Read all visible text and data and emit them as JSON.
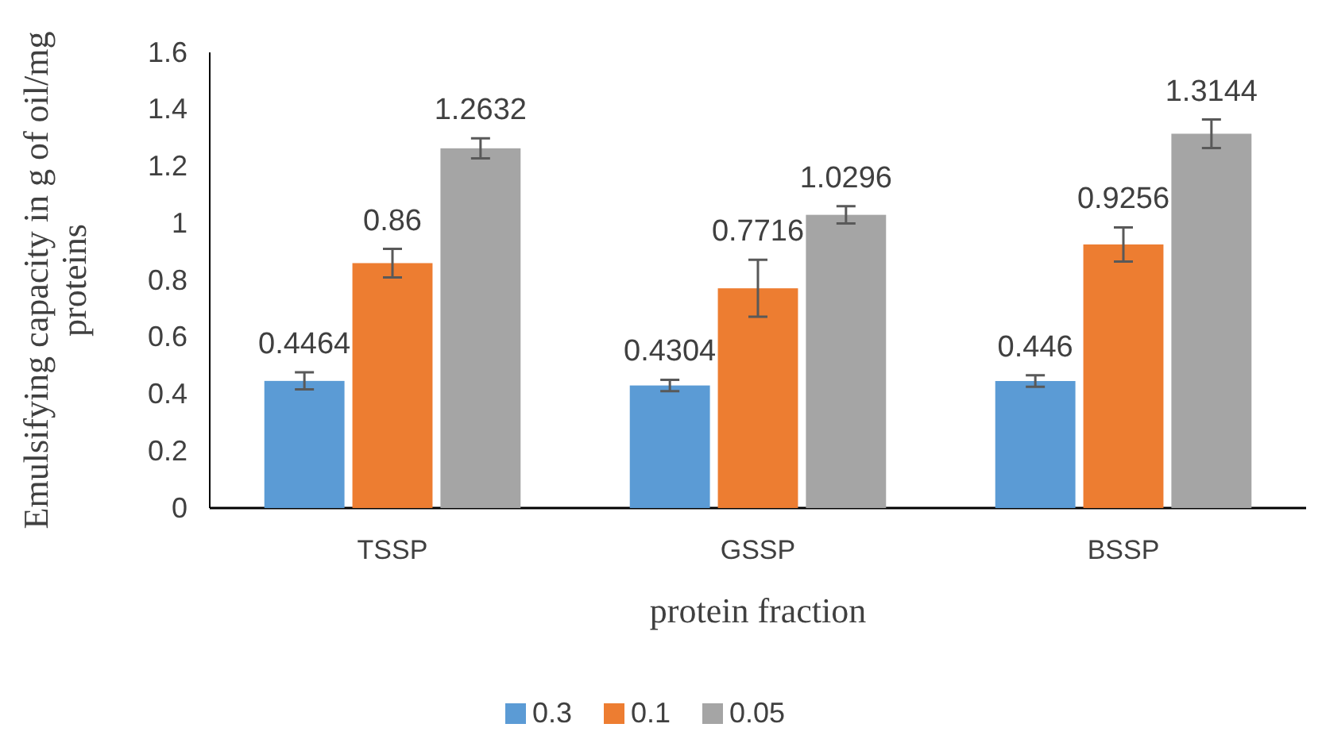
{
  "chart_data": {
    "type": "bar",
    "xlabel": "protein fraction",
    "ylabel": "Emulsifying capacity in g of oil/mg proteins",
    "categories": [
      "TSSP",
      "GSSP",
      "BSSP"
    ],
    "series": [
      {
        "name": "0.3",
        "color": "#5b9bd5",
        "values": [
          0.4464,
          0.4304,
          0.446
        ],
        "errors": [
          0.03,
          0.02,
          0.02
        ]
      },
      {
        "name": "0.1",
        "color": "#ed7d31",
        "values": [
          0.86,
          0.7716,
          0.9256
        ],
        "errors": [
          0.05,
          0.1,
          0.06
        ]
      },
      {
        "name": "0.05",
        "color": "#a5a5a5",
        "values": [
          1.2632,
          1.0296,
          1.3144
        ],
        "errors": [
          0.035,
          0.03,
          0.05
        ]
      }
    ],
    "ylim": [
      0,
      1.6
    ],
    "yticks": [
      0,
      0.2,
      0.4,
      0.6,
      0.8,
      1,
      1.2,
      1.4,
      1.6
    ],
    "grid": false,
    "legend": "bottom",
    "data_labels": true
  }
}
